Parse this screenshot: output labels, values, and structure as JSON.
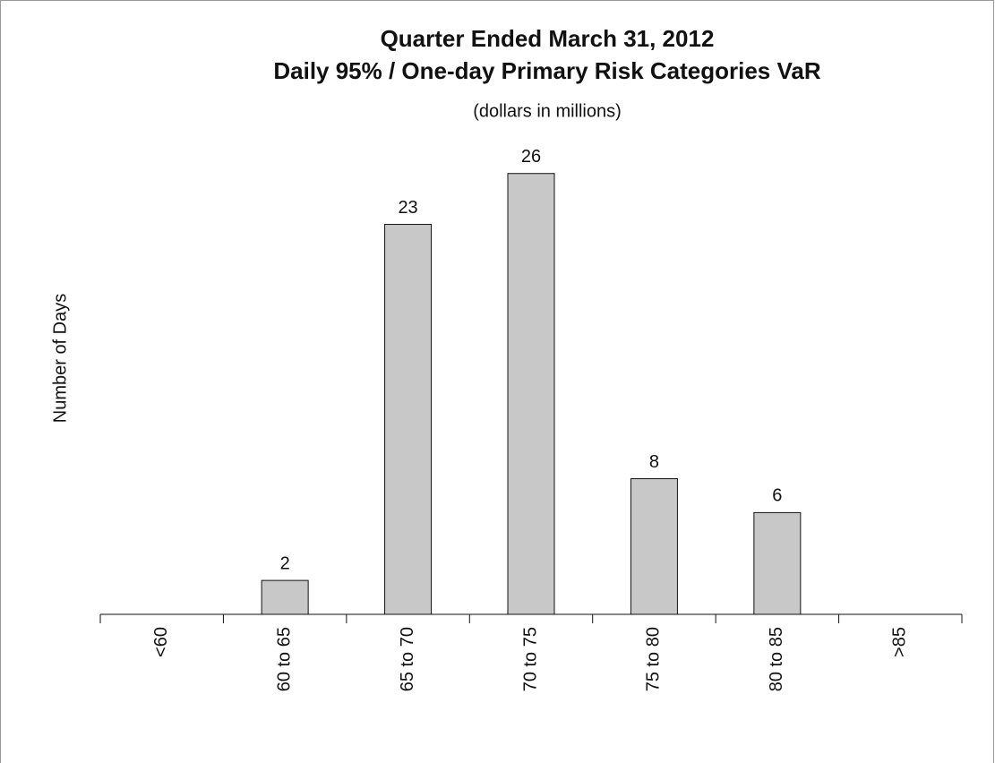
{
  "chart_data": {
    "type": "bar",
    "title": "Quarter Ended March 31, 2012",
    "subtitle": "Daily 95% / One-day Primary Risk Categories VaR",
    "note": "(dollars in millions)",
    "y_label": "Number of Days",
    "categories": [
      "<60",
      "60 to 65",
      "65 to 70",
      "70 to 75",
      "75 to 80",
      "80 to 85",
      ">85"
    ],
    "values": [
      0,
      2,
      23,
      26,
      8,
      6,
      0
    ],
    "color": "#c8c8c8",
    "ylim": [
      0,
      30
    ]
  }
}
